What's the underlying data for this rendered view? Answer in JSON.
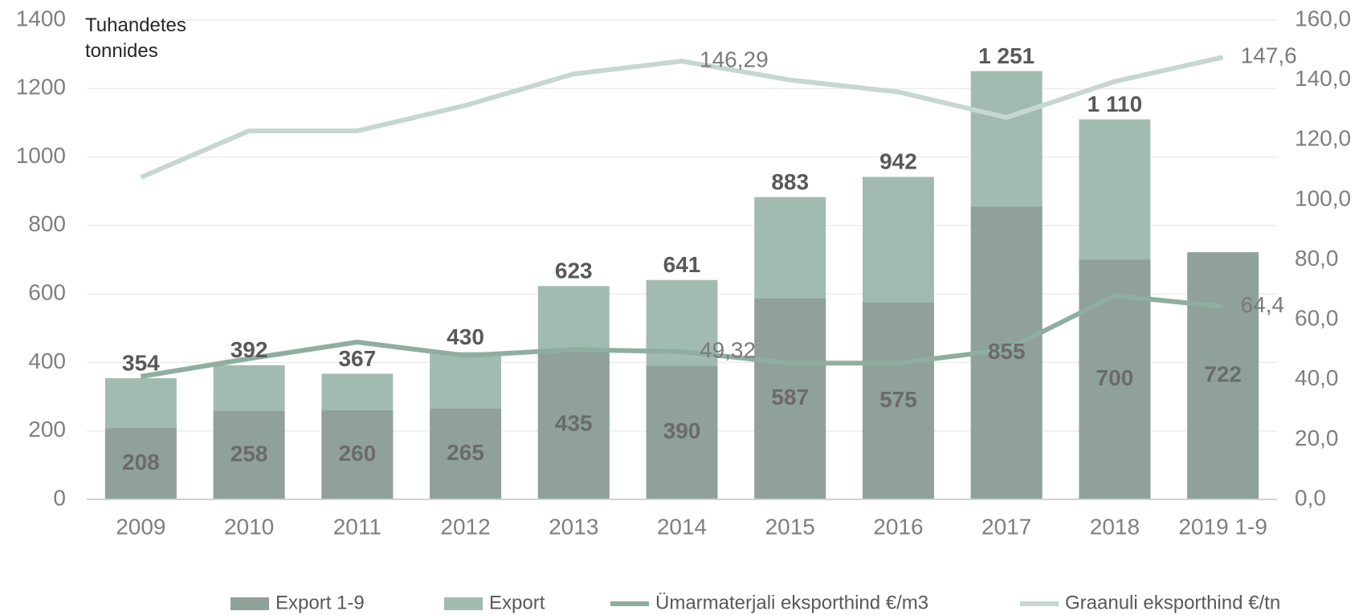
{
  "chart_data": {
    "type": "bar",
    "y_axis_label": "Tuhandetes tonnides",
    "categories": [
      "2009",
      "2010",
      "2011",
      "2012",
      "2013",
      "2014",
      "2015",
      "2016",
      "2017",
      "2018",
      "2019 1-9"
    ],
    "ylim": [
      0,
      1400
    ],
    "yticks": [
      0,
      200,
      400,
      600,
      800,
      1000,
      1200,
      1400
    ],
    "y2lim": [
      0,
      160
    ],
    "y2ticks": [
      {
        "value": 0,
        "label": "0,0"
      },
      {
        "value": 20,
        "label": "20,0"
      },
      {
        "value": 40,
        "label": "40,0"
      },
      {
        "value": 60,
        "label": "60,0"
      },
      {
        "value": 80,
        "label": "80,0"
      },
      {
        "value": 100,
        "label": "100,0"
      },
      {
        "value": 120,
        "label": "120,0"
      },
      {
        "value": 140,
        "label": "140,0"
      },
      {
        "value": 160,
        "label": "160,0"
      }
    ],
    "grid": true,
    "legend": "bottom",
    "series": [
      {
        "name": "Export",
        "type": "bar",
        "color": "#a2bbb1",
        "values": [
          354,
          392,
          367,
          430,
          623,
          641,
          883,
          942,
          1251,
          1110,
          null
        ],
        "value_labels": [
          "354",
          "392",
          "367",
          "430",
          "623",
          "641",
          "883",
          "942",
          "1 251",
          "1 110",
          null
        ]
      },
      {
        "name": "Export  1-9",
        "type": "bar",
        "color": "#8fa198",
        "values": [
          208,
          258,
          260,
          265,
          435,
          390,
          587,
          575,
          855,
          700,
          722
        ],
        "value_labels": [
          "208",
          "258",
          "260",
          "265",
          "435",
          "390",
          "587",
          "575",
          "855",
          "700",
          "722"
        ]
      },
      {
        "name": "Ümarmaterjali eksporthind €/m3",
        "type": "line",
        "axis": "y2",
        "color": "#8fae9f",
        "values": [
          41,
          47,
          52.5,
          48,
          50,
          49.32,
          45.5,
          45.5,
          50,
          68,
          64.4
        ],
        "value_labels": [
          null,
          null,
          null,
          null,
          null,
          "49,32",
          null,
          null,
          null,
          null,
          "64,4"
        ]
      },
      {
        "name": "Graanuli eksporthind €/tn",
        "type": "line",
        "axis": "y2",
        "color": "#c6d7d0",
        "values": [
          107.5,
          123,
          123,
          131.5,
          142,
          146.29,
          140,
          136,
          127.5,
          139.5,
          147.6
        ],
        "value_labels": [
          null,
          null,
          null,
          null,
          null,
          "146,29",
          null,
          null,
          null,
          null,
          "147,6"
        ]
      }
    ]
  }
}
